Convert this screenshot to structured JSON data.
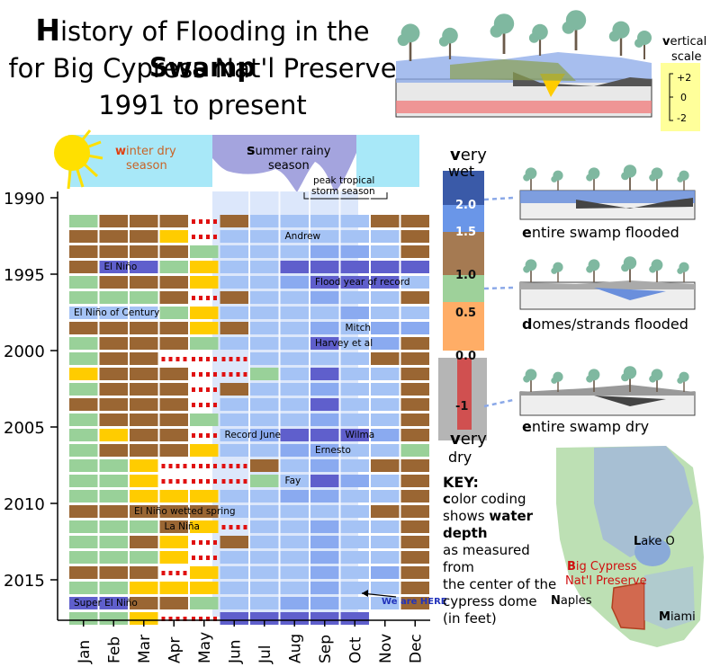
{
  "title": {
    "line1_first": "H",
    "line1_mid": "istory of Flooding in the ",
    "line1_bold": "Swamp",
    "line2": "for Big Cypress Nat'l Preserve",
    "line3": "1991 to present"
  },
  "seasons": {
    "winter_first": "w",
    "winter_rest": "inter dry",
    "winter_line2": "season",
    "summer_first": "s",
    "summer_rest": "ummer rainy",
    "summer_line2": "season",
    "peak_line1": "peak tropical",
    "peak_line2": "storm season"
  },
  "vertical_scale": {
    "label_first": "v",
    "label_rest": "ertical",
    "label_line2": "scale",
    "ticks": [
      "+2",
      "0",
      "-2"
    ]
  },
  "depth_bar": {
    "top_first": "v",
    "top_rest": "ery",
    "top_line2": "wet",
    "bottom_first": "v",
    "bottom_rest": "ery",
    "bottom_line2": "dry",
    "levels": [
      "2.0",
      "1.5",
      "1.0",
      "0.5",
      "0.0",
      "-1"
    ]
  },
  "scenarios": [
    {
      "first": "e",
      "rest": "ntire swamp flooded"
    },
    {
      "first": "d",
      "rest": "omes/strands flooded"
    },
    {
      "first": "e",
      "rest": "ntire swamp dry"
    }
  ],
  "key": {
    "header": "KEY:",
    "line1_first": "c",
    "line1_rest": "olor coding",
    "line2_pre": "shows ",
    "line2_bold": "water depth",
    "line3": "as measured from",
    "line4": "the center of the",
    "line5": "cypress dome",
    "line6": "(in feet)"
  },
  "map": {
    "lake_first": "L",
    "lake_rest": "ake O",
    "preserve_first": "B",
    "preserve_rest": "ig Cypress",
    "preserve_line2": "Nat'l Preserve",
    "naples_first": "N",
    "naples_rest": "aples",
    "miami_first": "M",
    "miami_rest": "iami"
  },
  "here": {
    "first": "W",
    "rest": "e are HERE"
  },
  "colors": {
    "very_wet": "#5f5fcc",
    "wet": "#8aaaf0",
    "medium": "#a5c3f5",
    "brown": "#9a6633",
    "green": "#99d199",
    "yellow": "#ffcc00",
    "red": "#e01010",
    "summer_band": "#dce7fb",
    "winter_sky": "#a8e8f8",
    "map_land": "#bde0b4",
    "preserve": "#d2694f"
  },
  "chart_data": {
    "type": "heatmap",
    "x_axis": "month",
    "y_axis": "year",
    "categories": [
      "Jan",
      "Feb",
      "Mar",
      "Apr",
      "May",
      "Jun",
      "Jul",
      "Aug",
      "Sep",
      "Oct",
      "Nov",
      "Dec"
    ],
    "year_range": [
      1990,
      2018
    ],
    "year_ticks": [
      "1990",
      "1995",
      "2000",
      "2005",
      "2010",
      "2015"
    ],
    "depth_classes": [
      {
        "class": "very_wet",
        "depth_ft": "2.0 and above"
      },
      {
        "class": "wet",
        "depth_ft": "1.5"
      },
      {
        "class": "medium",
        "depth_ft": "1.0"
      },
      {
        "class": "brown",
        "depth_ft": "0.5"
      },
      {
        "class": "green",
        "depth_ft": "0.0"
      },
      {
        "class": "yellow",
        "depth_ft": "-0.5"
      },
      {
        "class": "red",
        "depth_ft": "-1"
      }
    ],
    "annotations": [
      {
        "year": 1992,
        "month": "Aug",
        "text": "Andrew"
      },
      {
        "year": 1994,
        "month": "Feb",
        "text": "El Niño"
      },
      {
        "year": 1995,
        "month": "Sep",
        "text": "Flood year of record"
      },
      {
        "year": 1997,
        "month": "Jan",
        "text": "El Niño of Century"
      },
      {
        "year": 1998,
        "month": "Oct",
        "text": "Mitch"
      },
      {
        "year": 1999,
        "month": "Sep",
        "text": "Harvey et al"
      },
      {
        "year": 2005,
        "month": "Jun",
        "text": "Record June"
      },
      {
        "year": 2005,
        "month": "Oct",
        "text": "Wilma"
      },
      {
        "year": 2006,
        "month": "Sep",
        "text": "Ernesto"
      },
      {
        "year": 2008,
        "month": "Aug",
        "text": "Fay"
      },
      {
        "year": 2010,
        "month": "Mar",
        "text": "El Niño wetted spring"
      },
      {
        "year": 2011,
        "month": "Apr",
        "text": "La Niña"
      },
      {
        "year": 2016,
        "month": "Jan",
        "text": "Super El Niño"
      }
    ],
    "rows": [
      {
        "year": 1991,
        "months": [
          "green",
          "brown",
          "brown",
          "brown",
          "red",
          "brown",
          "medium",
          "medium",
          "medium",
          "medium",
          "brown",
          "brown"
        ]
      },
      {
        "year": 1992,
        "months": [
          "brown",
          "brown",
          "brown",
          "yellow",
          "red",
          "medium",
          "medium",
          "medium",
          "medium",
          "medium",
          "medium",
          "brown"
        ]
      },
      {
        "year": 1993,
        "months": [
          "brown",
          "brown",
          "brown",
          "brown",
          "green",
          "medium",
          "medium",
          "medium",
          "wet",
          "wet",
          "medium",
          "brown"
        ]
      },
      {
        "year": 1994,
        "months": [
          "brown",
          "very_wet",
          "very_wet",
          "green",
          "yellow",
          "medium",
          "medium",
          "very_wet",
          "very_wet",
          "very_wet",
          "very_wet",
          "very_wet"
        ]
      },
      {
        "year": 1995,
        "months": [
          "green",
          "brown",
          "brown",
          "brown",
          "yellow",
          "medium",
          "medium",
          "wet",
          "very_wet",
          "very_wet",
          "very_wet",
          "medium"
        ]
      },
      {
        "year": 1996,
        "months": [
          "green",
          "green",
          "green",
          "brown",
          "red",
          "brown",
          "medium",
          "medium",
          "wet",
          "medium",
          "medium",
          "brown"
        ]
      },
      {
        "year": 1997,
        "months": [
          "medium",
          "medium",
          "medium",
          "green",
          "yellow",
          "medium",
          "medium",
          "medium",
          "medium",
          "wet",
          "medium",
          "medium"
        ]
      },
      {
        "year": 1998,
        "months": [
          "brown",
          "brown",
          "brown",
          "brown",
          "yellow",
          "brown",
          "medium",
          "medium",
          "wet",
          "medium",
          "wet",
          "wet"
        ]
      },
      {
        "year": 1999,
        "months": [
          "green",
          "brown",
          "brown",
          "brown",
          "green",
          "medium",
          "medium",
          "medium",
          "very_wet",
          "medium",
          "wet",
          "brown"
        ]
      },
      {
        "year": 2000,
        "months": [
          "green",
          "brown",
          "brown",
          "red",
          "red",
          "red",
          "medium",
          "medium",
          "medium",
          "medium",
          "brown",
          "brown"
        ]
      },
      {
        "year": 2001,
        "months": [
          "yellow",
          "brown",
          "brown",
          "brown",
          "red",
          "red",
          "green",
          "medium",
          "very_wet",
          "medium",
          "medium",
          "brown"
        ]
      },
      {
        "year": 2002,
        "months": [
          "green",
          "brown",
          "brown",
          "brown",
          "red",
          "brown",
          "medium",
          "medium",
          "wet",
          "medium",
          "medium",
          "brown"
        ]
      },
      {
        "year": 2003,
        "months": [
          "brown",
          "brown",
          "brown",
          "brown",
          "red",
          "medium",
          "medium",
          "medium",
          "very_wet",
          "medium",
          "medium",
          "brown"
        ]
      },
      {
        "year": 2004,
        "months": [
          "green",
          "brown",
          "brown",
          "brown",
          "green",
          "medium",
          "medium",
          "medium",
          "wet",
          "medium",
          "medium",
          "brown"
        ]
      },
      {
        "year": 2005,
        "months": [
          "green",
          "yellow",
          "brown",
          "brown",
          "red",
          "medium",
          "wet",
          "very_wet",
          "very_wet",
          "very_wet",
          "wet",
          "brown"
        ]
      },
      {
        "year": 2006,
        "months": [
          "green",
          "brown",
          "brown",
          "brown",
          "yellow",
          "medium",
          "medium",
          "wet",
          "wet",
          "medium",
          "medium",
          "green"
        ]
      },
      {
        "year": 2007,
        "months": [
          "green",
          "green",
          "yellow",
          "red",
          "red",
          "red",
          "brown",
          "medium",
          "wet",
          "medium",
          "brown",
          "brown"
        ]
      },
      {
        "year": 2008,
        "months": [
          "green",
          "green",
          "yellow",
          "red",
          "red",
          "red",
          "green",
          "medium",
          "very_wet",
          "wet",
          "medium",
          "brown"
        ]
      },
      {
        "year": 2009,
        "months": [
          "green",
          "green",
          "yellow",
          "yellow",
          "yellow",
          "medium",
          "medium",
          "wet",
          "wet",
          "medium",
          "medium",
          "brown"
        ]
      },
      {
        "year": 2010,
        "months": [
          "brown",
          "brown",
          "brown",
          "brown",
          "brown",
          "medium",
          "medium",
          "medium",
          "medium",
          "medium",
          "brown",
          "brown"
        ]
      },
      {
        "year": 2011,
        "months": [
          "green",
          "green",
          "green",
          "brown",
          "yellow",
          "red",
          "medium",
          "medium",
          "wet",
          "medium",
          "medium",
          "brown"
        ]
      },
      {
        "year": 2012,
        "months": [
          "green",
          "green",
          "brown",
          "yellow",
          "red",
          "brown",
          "medium",
          "medium",
          "wet",
          "medium",
          "medium",
          "brown"
        ]
      },
      {
        "year": 2013,
        "months": [
          "green",
          "green",
          "green",
          "yellow",
          "red",
          "medium",
          "medium",
          "medium",
          "wet",
          "medium",
          "medium",
          "brown"
        ]
      },
      {
        "year": 2014,
        "months": [
          "brown",
          "brown",
          "brown",
          "red",
          "yellow",
          "medium",
          "medium",
          "medium",
          "wet",
          "medium",
          "wet",
          "brown"
        ]
      },
      {
        "year": 2015,
        "months": [
          "green",
          "green",
          "yellow",
          "yellow",
          "yellow",
          "medium",
          "medium",
          "medium",
          "wet",
          "medium",
          "medium",
          "brown"
        ]
      },
      {
        "year": 2016,
        "months": [
          "very_wet",
          "very_wet",
          "brown",
          "brown",
          "green",
          "medium",
          "medium",
          "wet",
          "wet",
          "medium",
          "medium",
          "brown"
        ]
      },
      {
        "year": 2017,
        "months": [
          "green",
          "green",
          "yellow",
          "red",
          "red",
          "very_wet",
          "very_wet",
          "very_wet",
          "very_wet",
          "very_wet",
          "",
          ""
        ]
      }
    ]
  }
}
